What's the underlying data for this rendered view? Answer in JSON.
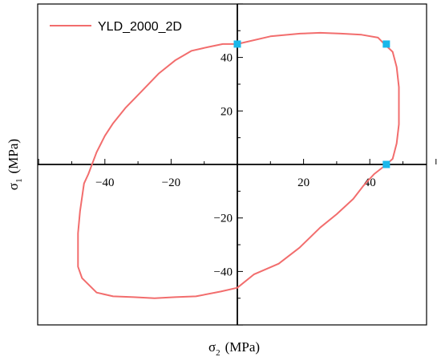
{
  "chart_data": {
    "type": "line",
    "title": "",
    "xlabel": {
      "symbol": "σ",
      "sub": "2",
      "unit": "(MPa)"
    },
    "ylabel": {
      "symbol": "σ",
      "sub": "1",
      "unit": "(MPa)"
    },
    "xlim": [
      -60,
      60
    ],
    "ylim": [
      -60,
      60
    ],
    "xticks": [
      -40,
      -20,
      20,
      40
    ],
    "yticks": [
      -40,
      -20,
      20,
      40
    ],
    "grid": false,
    "legend_position": "top-left",
    "series": [
      {
        "name": "YLD_2000_2D",
        "color": "#f26d6d",
        "x": [
          0,
          10,
          18.9,
          25,
          31.3,
          37.5,
          42.5,
          44.4,
          46.9,
          48.1,
          48.8,
          48.8,
          48.1,
          46.9,
          45,
          41.3,
          38.1,
          35,
          30,
          25,
          18.8,
          12.5,
          5,
          0,
          -5,
          -12.5,
          -18.8,
          -25,
          -31.3,
          -37.5,
          -42.5,
          -46.9,
          -48.1,
          -48.1,
          -47.5,
          -46.3,
          -45,
          -42.5,
          -40,
          -37.5,
          -33.8,
          -28.8,
          -23.8,
          -18.8,
          -13.8,
          -8.8,
          -4.4,
          0
        ],
        "y": [
          45,
          47.9,
          48.9,
          49.2,
          48.9,
          48.5,
          47.4,
          45,
          42.1,
          36.4,
          28.9,
          15,
          7.9,
          2.1,
          0,
          -3.6,
          -7.9,
          -12.9,
          -18.6,
          -23.6,
          -31.1,
          -37.1,
          -41.1,
          -46.1,
          -47.5,
          -49.3,
          -49.6,
          -50,
          -49.6,
          -49.3,
          -47.9,
          -42.5,
          -38.2,
          -25.7,
          -17.5,
          -7.1,
          -3.6,
          4.6,
          10.7,
          15.4,
          21.1,
          27.5,
          33.9,
          38.9,
          42.5,
          43.9,
          45,
          45
        ]
      }
    ],
    "markers": {
      "color": "#1ab7ea",
      "x": [
        0,
        45,
        45
      ],
      "y": [
        45,
        45,
        0
      ]
    }
  }
}
